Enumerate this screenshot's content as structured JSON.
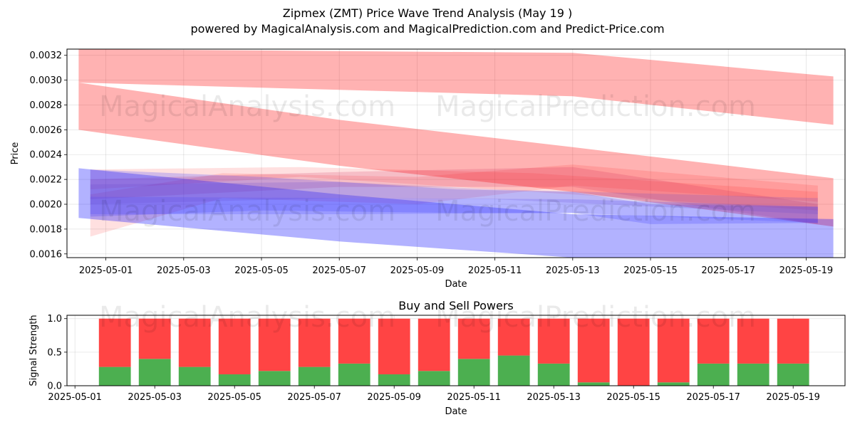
{
  "title": "Zipmex (ZMT) Price Wave Trend Analysis (May 19 )",
  "subtitle": "powered by MagicalAnalysis.com and MagicalPrediction.com and Predict-Price.com",
  "watermarks": [
    "MagicalAnalysis.com",
    "MagicalPrediction.com"
  ],
  "chart_data": [
    {
      "type": "area",
      "xlabel": "Date",
      "ylabel": "Price",
      "xlim": [
        "2025-04-30",
        "2025-05-20"
      ],
      "ylim": [
        0.00157,
        0.00325
      ],
      "x_ticks": [
        "2025-05-01",
        "2025-05-03",
        "2025-05-05",
        "2025-05-07",
        "2025-05-09",
        "2025-05-11",
        "2025-05-13",
        "2025-05-15",
        "2025-05-17",
        "2025-05-19"
      ],
      "y_ticks": [
        "0.0016",
        "0.0018",
        "0.0020",
        "0.0022",
        "0.0024",
        "0.0026",
        "0.0028",
        "0.0030",
        "0.0032"
      ],
      "grid": true,
      "series": [
        {
          "color": "#ff0000",
          "opacity": 0.3,
          "band": [
            [
              "2025-04-30.3",
              0.00298,
              0.00325
            ],
            [
              "2025-05-13",
              0.00287,
              0.00322
            ],
            [
              "2025-05-19.7",
              0.00264,
              0.00303
            ]
          ]
        },
        {
          "color": "#ff0000",
          "opacity": 0.3,
          "band": [
            [
              "2025-04-30.3",
              0.0026,
              0.00298
            ],
            [
              "2025-05-07",
              0.00231,
              0.00268
            ],
            [
              "2025-05-13",
              0.0021,
              0.00246
            ],
            [
              "2025-05-19.7",
              0.00182,
              0.00221
            ]
          ]
        },
        {
          "color": "#ff0000",
          "opacity": 0.12,
          "band": [
            [
              "2025-04-30.6",
              0.00174,
              0.00208
            ],
            [
              "2025-05-04",
              0.00205,
              0.00225
            ],
            [
              "2025-05-09",
              0.002,
              0.00222
            ],
            [
              "2025-05-13",
              0.00215,
              0.00232
            ],
            [
              "2025-05-19.3",
              0.00202,
              0.00215
            ]
          ]
        },
        {
          "color": "#ff0000",
          "opacity": 0.12,
          "band": [
            [
              "2025-04-30.6",
              0.00212,
              0.00228
            ],
            [
              "2025-05-06",
              0.00222,
              0.0023
            ],
            [
              "2025-05-12",
              0.0021,
              0.00225
            ],
            [
              "2025-05-19.3",
              0.00195,
              0.0021
            ]
          ]
        },
        {
          "color": "#cc2255",
          "opacity": 0.18,
          "band": [
            [
              "2025-04-30.6",
              0.00204,
              0.0022
            ],
            [
              "2025-05-07",
              0.00214,
              0.00226
            ],
            [
              "2025-05-13",
              0.00214,
              0.0023
            ],
            [
              "2025-05-19.3",
              0.00184,
              0.002
            ]
          ]
        },
        {
          "color": "#0000ff",
          "opacity": 0.3,
          "band": [
            [
              "2025-04-30.3",
              0.00189,
              0.00229
            ],
            [
              "2025-05-07",
              0.0017,
              0.00208
            ],
            [
              "2025-05-13",
              0.00157,
              0.00192
            ],
            [
              "2025-05-19.7",
              0.00157,
              0.00188
            ]
          ]
        },
        {
          "color": "#3333ff",
          "opacity": 0.22,
          "band": [
            [
              "2025-04-30.6",
              0.0019,
              0.00228
            ],
            [
              "2025-05-05",
              0.00195,
              0.00222
            ],
            [
              "2025-05-10",
              0.00193,
              0.00212
            ],
            [
              "2025-05-13",
              0.00193,
              0.0021
            ],
            [
              "2025-05-15",
              0.00184,
              0.002
            ],
            [
              "2025-05-19.3",
              0.00185,
              0.00198
            ]
          ]
        },
        {
          "color": "#4444ff",
          "opacity": 0.22,
          "band": [
            [
              "2025-04-30.6",
              0.00192,
              0.00206
            ],
            [
              "2025-05-07",
              0.00192,
              0.00205
            ],
            [
              "2025-05-13",
              0.00193,
              0.00204
            ],
            [
              "2025-05-19.3",
              0.00185,
              0.00198
            ]
          ]
        },
        {
          "color": "#6644cc",
          "opacity": 0.2,
          "band": [
            [
              "2025-04-30.6",
              0.002,
              0.00216
            ],
            [
              "2025-05-07",
              0.00205,
              0.00218
            ],
            [
              "2025-05-11",
              0.00204,
              0.00212
            ],
            [
              "2025-05-19.3",
              0.00192,
              0.00205
            ]
          ]
        }
      ]
    },
    {
      "type": "bar",
      "title": "Buy and Sell Powers",
      "xlabel": "Date",
      "ylabel": "Signal Strength",
      "xlim": [
        "2025-05-01",
        "2025-05-20"
      ],
      "ylim": [
        0,
        1.05
      ],
      "x_ticks": [
        "2025-05-01",
        "2025-05-03",
        "2025-05-05",
        "2025-05-07",
        "2025-05-09",
        "2025-05-11",
        "2025-05-13",
        "2025-05-15",
        "2025-05-17",
        "2025-05-19"
      ],
      "y_ticks": [
        "0.0",
        "0.5",
        "1.0"
      ],
      "grid": true,
      "categories": [
        "2025-05-02",
        "2025-05-03",
        "2025-05-04",
        "2025-05-05",
        "2025-05-06",
        "2025-05-07",
        "2025-05-08",
        "2025-05-09",
        "2025-05-10",
        "2025-05-11",
        "2025-05-12",
        "2025-05-13",
        "2025-05-14",
        "2025-05-15",
        "2025-05-16",
        "2025-05-17",
        "2025-05-18",
        "2025-05-19"
      ],
      "series": [
        {
          "color": "#4caf50",
          "values": [
            0.28,
            0.4,
            0.28,
            0.17,
            0.22,
            0.28,
            0.33,
            0.17,
            0.22,
            0.4,
            0.45,
            0.33,
            0.05,
            0.0,
            0.05,
            0.33,
            0.33,
            0.33
          ]
        },
        {
          "color": "#ff4444",
          "values": [
            0.72,
            0.6,
            0.72,
            0.83,
            0.78,
            0.72,
            0.67,
            0.83,
            0.78,
            0.6,
            0.55,
            0.67,
            0.95,
            1.0,
            0.95,
            0.67,
            0.67,
            0.67
          ]
        }
      ]
    }
  ]
}
